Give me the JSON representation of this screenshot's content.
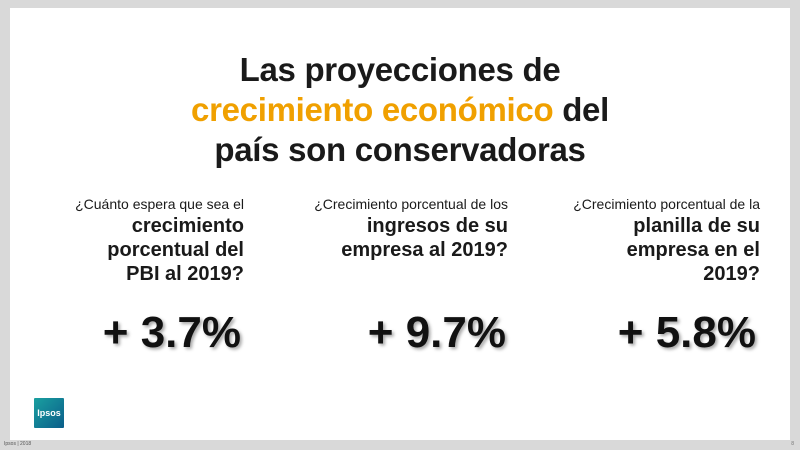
{
  "title": {
    "line1": "Las proyecciones de",
    "line2_accent": "crecimiento económico",
    "line2_rest": " del",
    "line3": "país son conservadoras"
  },
  "colors": {
    "accent": "#f0a000",
    "text": "#1a1a1a",
    "background": "#ffffff",
    "frame": "#d9d9d9"
  },
  "questions": [
    {
      "intro": "¿Cuánto espera que sea el",
      "bold_lines": [
        "crecimiento",
        "porcentual del",
        "PBI al 2019?"
      ],
      "value": "+ 3.7%"
    },
    {
      "intro": "¿Crecimiento porcentual de los",
      "bold_lines": [
        "ingresos de su",
        "empresa al 2019?"
      ],
      "value": "+ 9.7%"
    },
    {
      "intro": "¿Crecimiento porcentual de la",
      "bold_lines": [
        "planilla de su",
        "empresa en el",
        "2019?"
      ],
      "value": "+ 5.8%"
    }
  ],
  "logo": {
    "text": "Ipsos"
  },
  "footer": {
    "text": "Ipsos | 2018",
    "page": "8"
  }
}
